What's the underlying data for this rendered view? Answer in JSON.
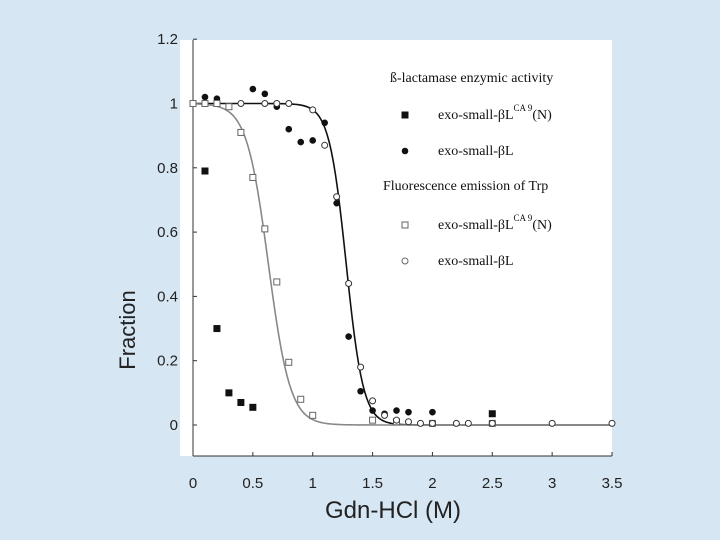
{
  "chart_data": {
    "type": "scatter",
    "title": "",
    "xlabel": "Gdn-HCl (M)",
    "ylabel": "Fraction",
    "xlim": [
      0,
      3.5
    ],
    "ylim": [
      -0.1,
      1.2
    ],
    "x_ticks": [
      "0",
      "0.5",
      "1",
      "1.5",
      "2",
      "2.5",
      "3",
      "3.5"
    ],
    "y_ticks": [
      "0",
      "0.2",
      "0.4",
      "0.6",
      "0.8",
      "1",
      "1.2"
    ],
    "legend": {
      "position": "top-right",
      "heading1": "ß-lactamase enzymic activity",
      "heading2": "Fluorescence emission of Trp",
      "entries": [
        {
          "name": "exo-small-βL",
          "superscript": "CA 9",
          "suffix": "(N)",
          "marker": "filled-square"
        },
        {
          "name": "exo-small-βL",
          "superscript": "",
          "suffix": "",
          "marker": "filled-circle"
        },
        {
          "name": "exo-small-βL",
          "superscript": "CA 9",
          "suffix": "(N)",
          "marker": "open-square"
        },
        {
          "name": "exo-small-βL",
          "superscript": "",
          "suffix": "",
          "marker": "open-circle"
        }
      ]
    },
    "series": [
      {
        "name": "exo-small-βL CA9(N) enzymic activity",
        "marker": "filled-square",
        "color": "#111111",
        "points": [
          [
            0,
            1.0
          ],
          [
            0.1,
            0.79
          ],
          [
            0.2,
            0.3
          ],
          [
            0.3,
            0.1
          ],
          [
            0.4,
            0.07
          ],
          [
            0.5,
            0.055
          ],
          [
            2.5,
            0.035
          ]
        ]
      },
      {
        "name": "exo-small-βL enzymic activity",
        "marker": "filled-circle",
        "color": "#111111",
        "points": [
          [
            0.1,
            1.02
          ],
          [
            0.2,
            1.015
          ],
          [
            0.5,
            1.045
          ],
          [
            0.6,
            1.03
          ],
          [
            0.7,
            0.99
          ],
          [
            0.8,
            0.92
          ],
          [
            0.9,
            0.88
          ],
          [
            1.0,
            0.885
          ],
          [
            1.1,
            0.94
          ],
          [
            1.2,
            0.69
          ],
          [
            1.3,
            0.275
          ],
          [
            1.4,
            0.105
          ],
          [
            1.5,
            0.045
          ],
          [
            1.6,
            0.035
          ],
          [
            1.7,
            0.045
          ],
          [
            1.8,
            0.04
          ],
          [
            2.0,
            0.04
          ]
        ]
      },
      {
        "name": "exo-small-βL CA9(N) Trp fluorescence",
        "marker": "open-square",
        "color": "#666666",
        "points": [
          [
            0,
            1.0
          ],
          [
            0.1,
            1.0
          ],
          [
            0.2,
            1.0
          ],
          [
            0.3,
            0.99
          ],
          [
            0.4,
            0.91
          ],
          [
            0.5,
            0.77
          ],
          [
            0.6,
            0.61
          ],
          [
            0.7,
            0.445
          ],
          [
            0.8,
            0.195
          ],
          [
            0.9,
            0.08
          ],
          [
            1.0,
            0.03
          ],
          [
            1.5,
            0.015
          ],
          [
            1.7,
            0.01
          ],
          [
            2.0,
            0.005
          ],
          [
            2.5,
            0.005
          ]
        ]
      },
      {
        "name": "exo-small-βL Trp fluorescence",
        "marker": "open-circle",
        "color": "#333333",
        "points": [
          [
            0.4,
            1.0
          ],
          [
            0.6,
            1.0
          ],
          [
            0.7,
            1.0
          ],
          [
            0.8,
            1.0
          ],
          [
            1.0,
            0.98
          ],
          [
            1.1,
            0.87
          ],
          [
            1.2,
            0.71
          ],
          [
            1.3,
            0.44
          ],
          [
            1.4,
            0.18
          ],
          [
            1.5,
            0.075
          ],
          [
            1.6,
            0.03
          ],
          [
            1.7,
            0.015
          ],
          [
            1.8,
            0.01
          ],
          [
            1.9,
            0.005
          ],
          [
            2.0,
            0.005
          ],
          [
            2.2,
            0.005
          ],
          [
            2.3,
            0.005
          ],
          [
            2.5,
            0.005
          ],
          [
            3.0,
            0.005
          ],
          [
            3.5,
            0.005
          ]
        ]
      }
    ],
    "fits": [
      {
        "name": "enzymic-activity-fit",
        "color": "#111111",
        "midpoint": 1.28,
        "steepness": 14
      },
      {
        "name": "trp-fluorescence-fit",
        "color": "#888888",
        "midpoint": 0.63,
        "steepness": 11
      }
    ]
  }
}
